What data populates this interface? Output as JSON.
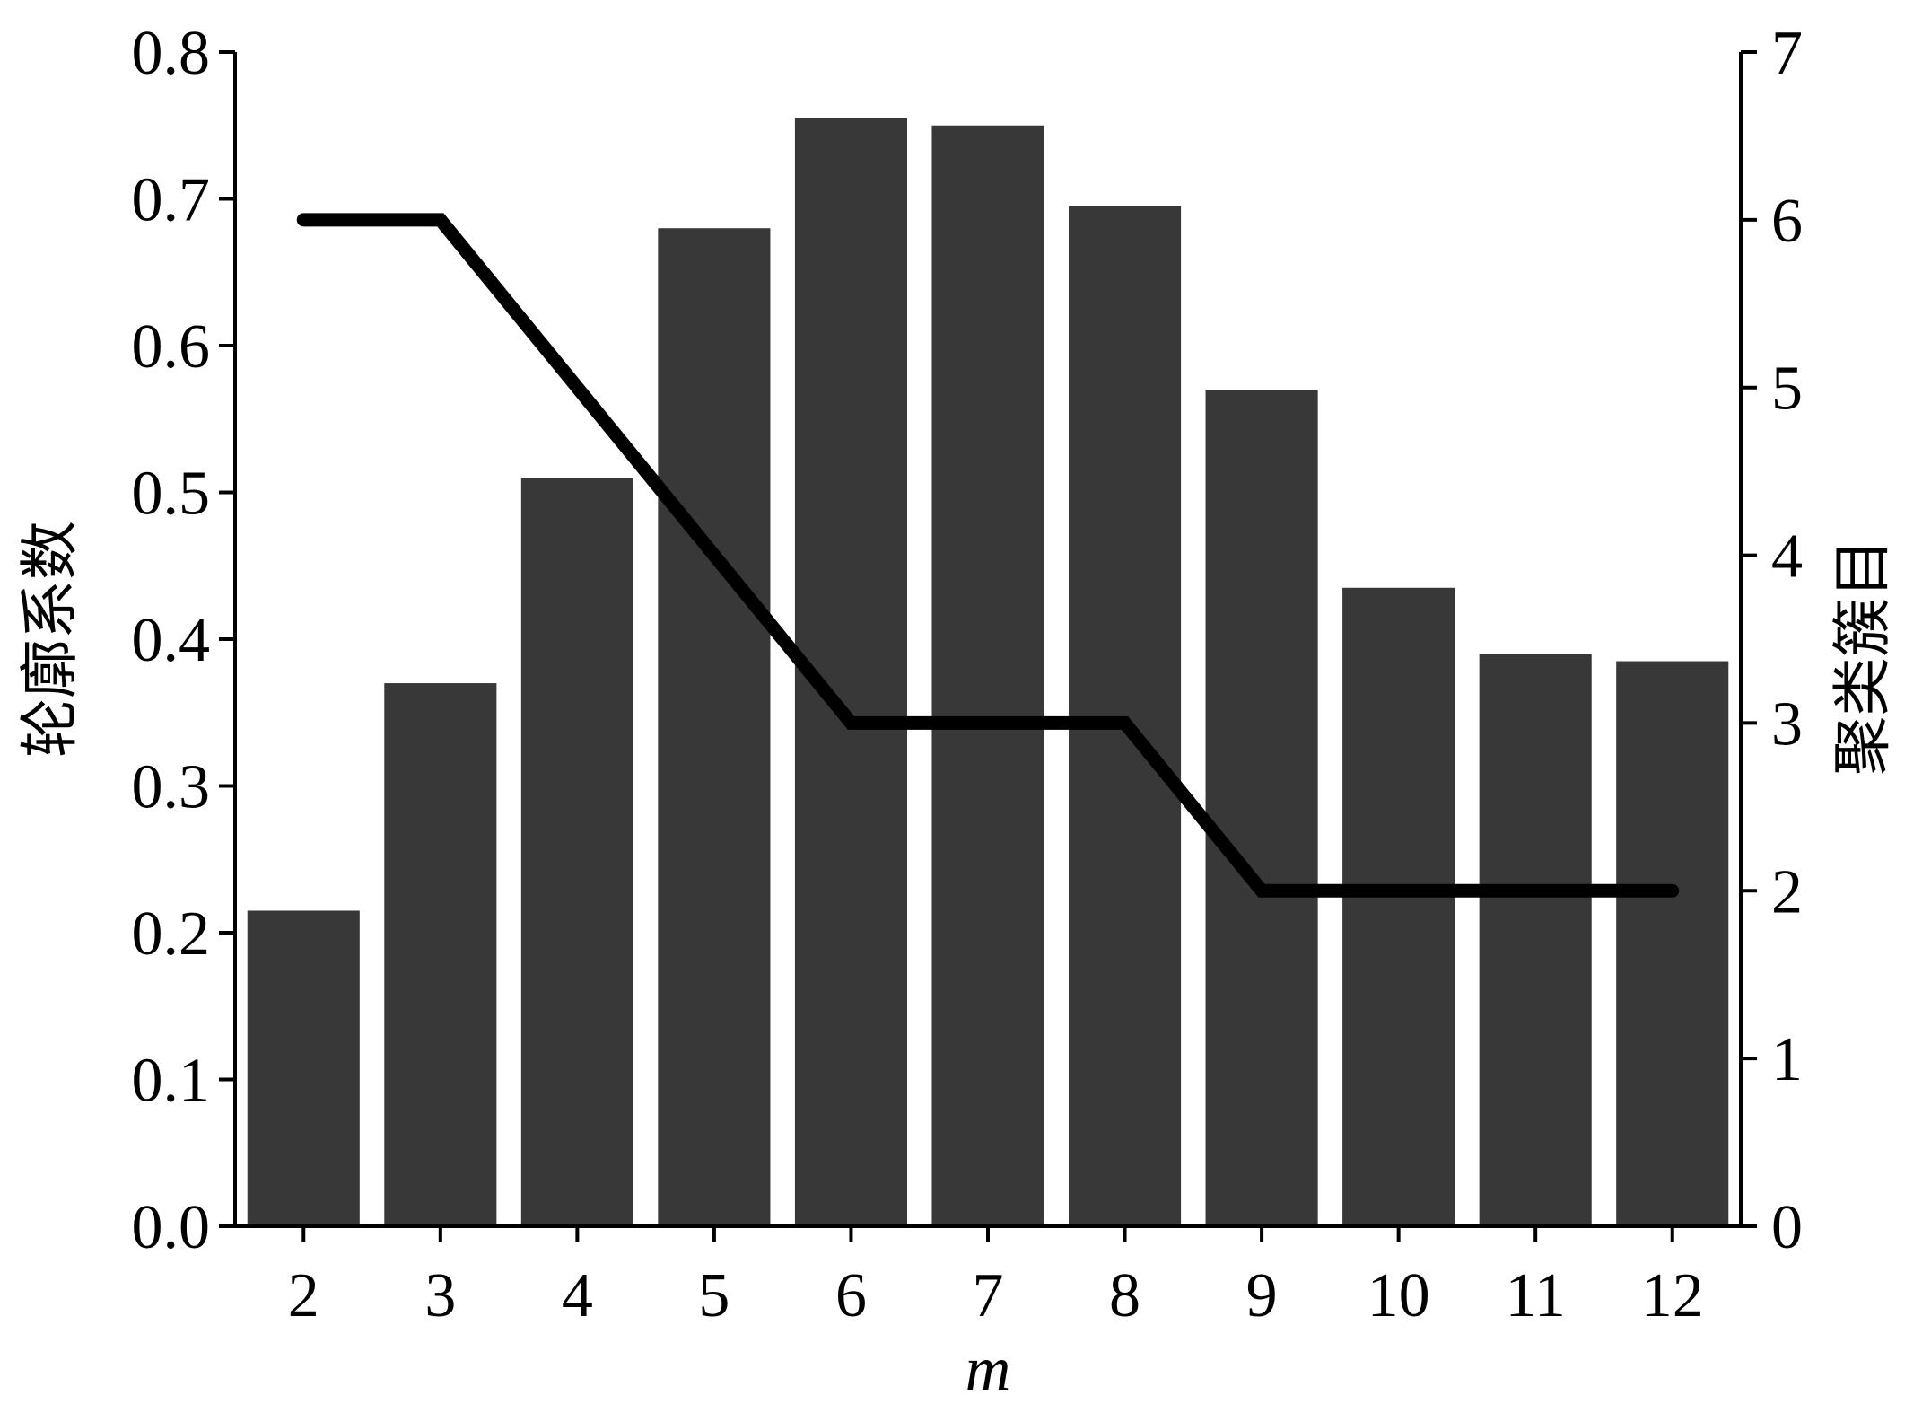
{
  "chart_data": {
    "type": "bar",
    "categories": [
      "2",
      "3",
      "4",
      "5",
      "6",
      "7",
      "8",
      "9",
      "10",
      "11",
      "12"
    ],
    "series": [
      {
        "type": "bar",
        "axis": "left",
        "values": [
          0.215,
          0.37,
          0.51,
          0.68,
          0.755,
          0.75,
          0.695,
          0.57,
          0.435,
          0.39,
          0.385
        ],
        "color": "#383838"
      },
      {
        "type": "line",
        "axis": "right",
        "values": [
          6,
          6,
          5,
          4,
          3,
          3,
          3,
          2,
          2,
          2,
          2
        ],
        "color": "#000000"
      }
    ],
    "xlabel": "m",
    "ylabel": "轮廓系数",
    "y2label": "聚类簇目",
    "ylim": [
      0,
      0.8
    ],
    "y2lim": [
      0,
      7
    ],
    "yticks": [
      "0.0",
      "0.1",
      "0.2",
      "0.3",
      "0.4",
      "0.5",
      "0.6",
      "0.7",
      "0.8"
    ],
    "y2ticks": [
      "0",
      "1",
      "2",
      "3",
      "4",
      "5",
      "6",
      "7"
    ],
    "grid": false
  }
}
